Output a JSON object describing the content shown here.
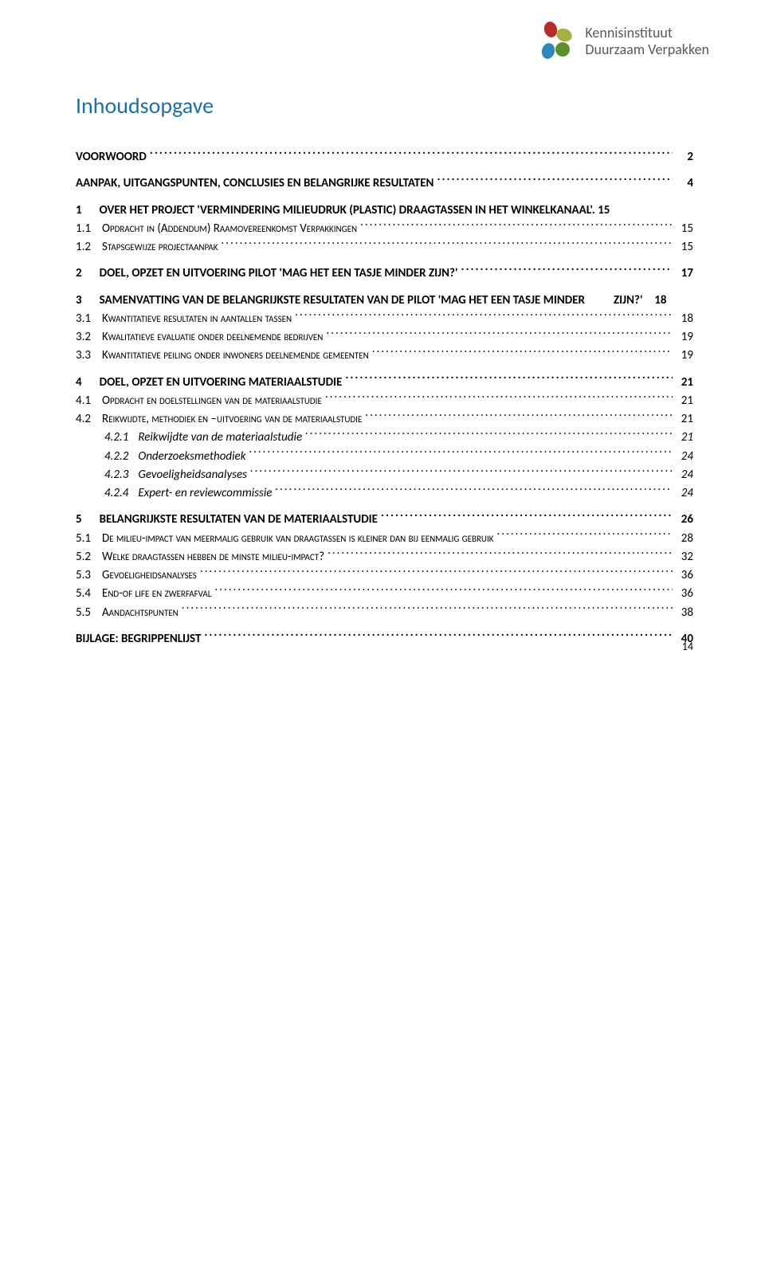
{
  "logo": {
    "line1": "Kennisinstituut",
    "line2": "Duurzaam Verpakken",
    "colors": {
      "text": "#5a5a5a",
      "red": "#b42f2a",
      "olive": "#a6b143",
      "green": "#5e8f2e",
      "blue": "#2f86b8"
    }
  },
  "title": "Inhoudsopgave",
  "footer_page_number": "14",
  "toc": [
    {
      "level": 0,
      "num": "",
      "label": "VOORWOORD",
      "page": "2"
    },
    {
      "level": 0,
      "num": "",
      "label": "AANPAK, UITGANGSPUNTEN, CONCLUSIES EN BELANGRIJKE RESULTATEN",
      "page": "4"
    },
    {
      "level": 1,
      "num": "1",
      "label": "OVER HET PROJECT 'VERMINDERING MILIEUDRUK (PLASTIC) DRAAGTASSEN IN HET WINKELKANAAL'.",
      "inlinePage": "15"
    },
    {
      "level": 2,
      "num": "1.1",
      "label": "Opdracht in (Addendum) Raamovereenkomst Verpakkingen",
      "page": "15"
    },
    {
      "level": 2,
      "num": "1.2",
      "label": "Stapsgewijze projectaanpak",
      "page": "15"
    },
    {
      "level": 1,
      "num": "2",
      "label": "DOEL, OPZET EN UITVOERING PILOT 'MAG HET EEN TASJE MINDER ZIJN?'",
      "page": "17"
    },
    {
      "level": 1,
      "num": "3",
      "label_line1": "SAMENVATTING VAN DE BELANGRIJKSTE RESULTATEN VAN DE PILOT 'MAG HET EEN TASJE MINDER",
      "label_line2": "ZIJN?'",
      "page": "18",
      "wrap": true
    },
    {
      "level": 2,
      "num": "3.1",
      "label": "Kwantitatieve resultaten in aantallen tassen",
      "page": "18"
    },
    {
      "level": 2,
      "num": "3.2",
      "label": "Kwalitatieve evaluatie onder deelnemende bedrijven",
      "page": "19"
    },
    {
      "level": 2,
      "num": "3.3",
      "label": "Kwantitatieve peiling onder inwoners deelnemende gemeenten",
      "page": "19"
    },
    {
      "level": 1,
      "num": "4",
      "label": "DOEL, OPZET EN UITVOERING MATERIAALSTUDIE",
      "page": "21"
    },
    {
      "level": 2,
      "num": "4.1",
      "label": "Opdracht en doelstellingen van de materiaalstudie",
      "page": "21"
    },
    {
      "level": 2,
      "num": "4.2",
      "label": "Reikwijdte, methodiek en –uitvoering van de materiaalstudie",
      "page": "21"
    },
    {
      "level": 3,
      "num": "4.2.1",
      "label": "Reikwijdte van de materiaalstudie",
      "page": "21"
    },
    {
      "level": 3,
      "num": "4.2.2",
      "label": "Onderzoeksmethodiek",
      "page": "24"
    },
    {
      "level": 3,
      "num": "4.2.3",
      "label": "Gevoeligheidsanalyses",
      "page": "24"
    },
    {
      "level": 3,
      "num": "4.2.4",
      "label": "Expert- en reviewcommissie",
      "page": "24"
    },
    {
      "level": 1,
      "num": "5",
      "label": "BELANGRIJKSTE RESULTATEN VAN DE MATERIAALSTUDIE",
      "page": "26"
    },
    {
      "level": 2,
      "num": "5.1",
      "label": "De milieu-impact van meermalig gebruik van draagtassen is kleiner dan bij eenmalig gebruik",
      "page": "28"
    },
    {
      "level": 2,
      "num": "5.2",
      "label": "Welke draagtassen hebben de minste milieu-impact?",
      "page": "32"
    },
    {
      "level": 2,
      "num": "5.3",
      "label": "Gevoeligheidsanalyses",
      "page": "36"
    },
    {
      "level": 2,
      "num": "5.4",
      "label": "End-of life en zwerfafval",
      "page": "36"
    },
    {
      "level": 2,
      "num": "5.5",
      "label": "Aandachtspunten",
      "page": "38"
    },
    {
      "level": 0,
      "num": "",
      "label": "BIJLAGE: BEGRIPPENLIJST",
      "page": "40"
    }
  ]
}
